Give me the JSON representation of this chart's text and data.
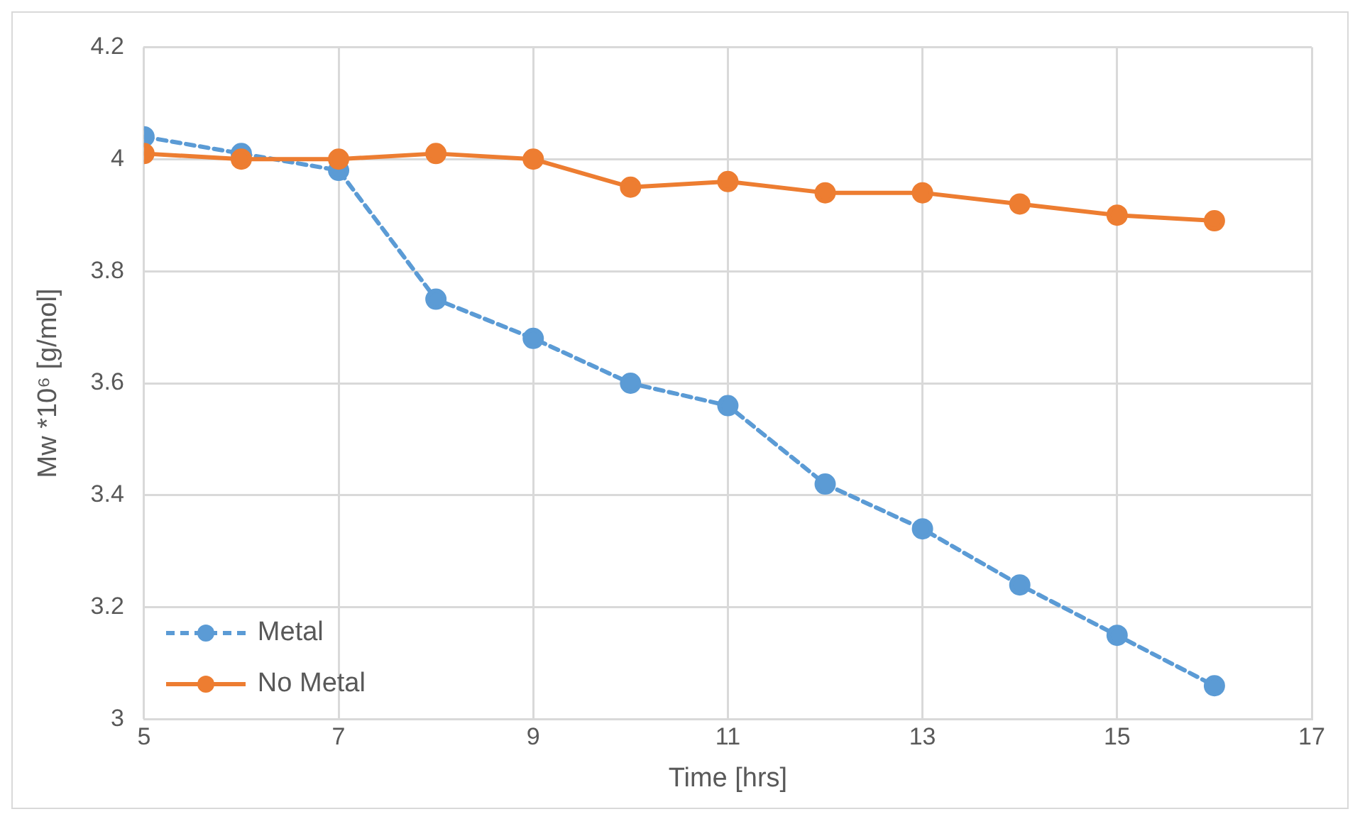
{
  "chart_data": {
    "type": "line",
    "xlabel": "Time [hrs]",
    "ylabel": "Mw *10⁶ [g/mol]",
    "x": [
      5,
      6,
      7,
      8,
      9,
      10,
      11,
      12,
      13,
      14,
      15,
      16
    ],
    "series": [
      {
        "name": "Metal",
        "color": "#5b9bd5",
        "line_style": "dashed",
        "values": [
          4.04,
          4.01,
          3.98,
          3.75,
          3.68,
          3.6,
          3.56,
          3.42,
          3.34,
          3.24,
          3.15,
          3.06
        ]
      },
      {
        "name": "No Metal",
        "color": "#ed7d31",
        "line_style": "solid",
        "values": [
          4.01,
          4.0,
          4.0,
          4.01,
          4.0,
          3.95,
          3.96,
          3.94,
          3.94,
          3.92,
          3.9,
          3.89
        ]
      }
    ],
    "xlim": [
      5,
      17
    ],
    "xticks": [
      5,
      7,
      9,
      11,
      13,
      15,
      17
    ],
    "ylim": [
      3,
      4.2
    ],
    "yticks": [
      3,
      3.2,
      3.4,
      3.6,
      3.8,
      4,
      4.2
    ],
    "grid": true,
    "legend": "bottom left",
    "marker": "circle"
  }
}
